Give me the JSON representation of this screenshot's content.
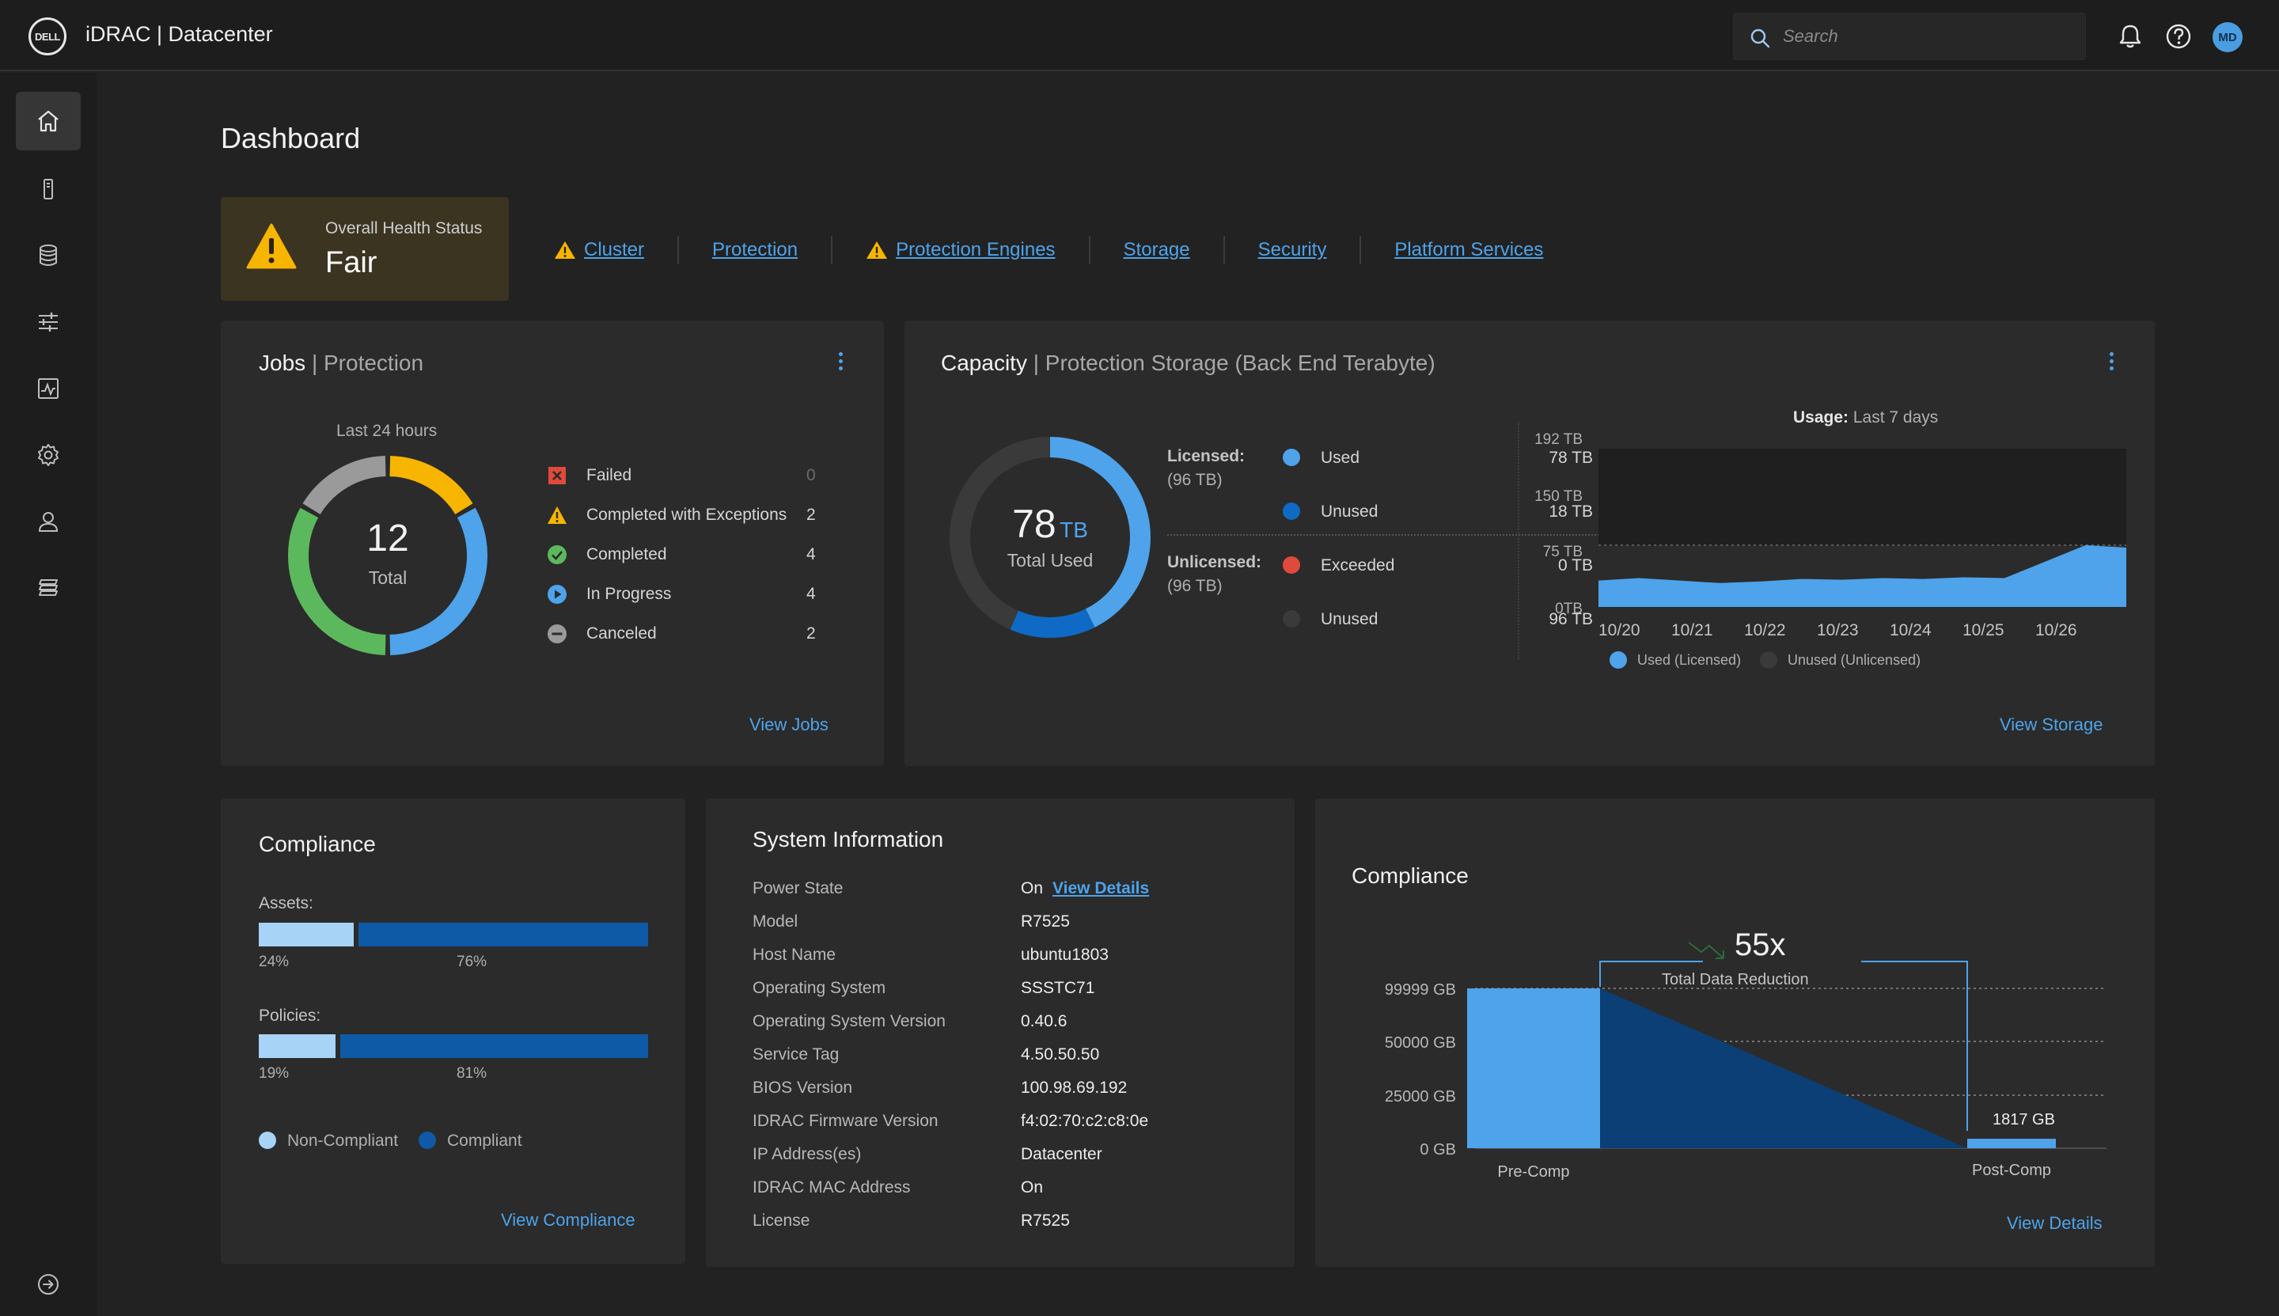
{
  "header": {
    "logo_text": "DELL",
    "title": "iDRAC | Datacenter",
    "search_placeholder": "Search",
    "avatar_initials": "MD"
  },
  "sidebar": {
    "items": [
      {
        "name": "home",
        "icon": "home-icon",
        "active": true
      },
      {
        "name": "server",
        "icon": "server-icon"
      },
      {
        "name": "storage",
        "icon": "database-icon"
      },
      {
        "name": "configuration",
        "icon": "sliders-icon"
      },
      {
        "name": "monitoring",
        "icon": "chart-icon"
      },
      {
        "name": "settings",
        "icon": "gear-icon"
      },
      {
        "name": "users",
        "icon": "user-icon"
      },
      {
        "name": "layers",
        "icon": "layers-icon"
      }
    ],
    "bottom_icon": "arrow-right-circle-icon"
  },
  "dashboard": {
    "title": "Dashboard",
    "health": {
      "label": "Overall Health Status",
      "value": "Fair"
    },
    "status_links": [
      {
        "label": "Cluster",
        "warning": true
      },
      {
        "label": "Protection",
        "warning": false
      },
      {
        "label": "Protection Engines",
        "warning": true
      },
      {
        "label": "Storage",
        "warning": false
      },
      {
        "label": "Security",
        "warning": false
      },
      {
        "label": "Platform Services",
        "warning": false
      }
    ]
  },
  "jobs": {
    "title": "Jobs",
    "subtitle": "Protection",
    "period": "Last 24 hours",
    "total": "12",
    "total_label": "Total",
    "legend": [
      {
        "label": "Failed",
        "count": "0",
        "color": "#e04a3c",
        "icon": "failed-icon"
      },
      {
        "label": "Completed with Exceptions",
        "count": "2",
        "color": "#f7b500",
        "icon": "warning-icon"
      },
      {
        "label": "Completed",
        "count": "4",
        "color": "#5cb85c",
        "icon": "check-icon"
      },
      {
        "label": "In Progress",
        "count": "4",
        "color": "#4ea3ea",
        "icon": "play-icon"
      },
      {
        "label": "Canceled",
        "count": "2",
        "color": "#9a9a9a",
        "icon": "minus-icon"
      }
    ],
    "view_link": "View Jobs"
  },
  "capacity": {
    "title": "Capacity",
    "subtitle": "Protection Storage (Back End Terabyte)",
    "total_value": "78",
    "total_unit": "TB",
    "total_label": "Total Used",
    "licensed_label": "Licensed:",
    "licensed_size": "(96 TB)",
    "unlicensed_label": "Unlicensed:",
    "unlicensed_size": "(96 TB)",
    "rows": [
      {
        "label": "Used",
        "value": "78 TB",
        "color": "#4ea3ea"
      },
      {
        "label": "Unused",
        "value": "18 TB",
        "color": "#0e6ac4"
      },
      {
        "label": "Exceeded",
        "value": "0 TB",
        "color": "#e04a3c"
      },
      {
        "label": "Unused",
        "value": "96 TB",
        "color": "#3a3a3a"
      }
    ],
    "usage_label": "Usage:",
    "usage_period": "Last 7 days",
    "view_link": "View Storage"
  },
  "compliance_assets": {
    "title": "Compliance",
    "assets_label": "Assets:",
    "assets_noncompliant": 24,
    "assets_compliant": 76,
    "assets_noncompliant_label": "24%",
    "assets_compliant_label": "76%",
    "policies_label": "Policies:",
    "policies_noncompliant": 19,
    "policies_compliant": 81,
    "policies_noncompliant_label": "19%",
    "policies_compliant_label": "81%",
    "legend_noncompliant": "Non-Compliant",
    "legend_compliant": "Compliant",
    "color_noncompliant": "#a7d3f7",
    "color_compliant": "#0e5aa7",
    "view_link": "View Compliance"
  },
  "system_info": {
    "title": "System Information",
    "view_details": "View Details",
    "rows": [
      {
        "label": "Power State",
        "value": "On"
      },
      {
        "label": "Model",
        "value": "R7525"
      },
      {
        "label": "Host Name",
        "value": "ubuntu1803"
      },
      {
        "label": "Operating System",
        "value": "SSSTC71"
      },
      {
        "label": "Operating System Version",
        "value": "0.40.6"
      },
      {
        "label": "Service Tag",
        "value": "4.50.50.50"
      },
      {
        "label": "BIOS Version",
        "value": "100.98.69.192"
      },
      {
        "label": "IDRAC Firmware Version",
        "value": "f4:02:70:c2:c8:0e"
      },
      {
        "label": "IP Address(es)",
        "value": "Datacenter"
      },
      {
        "label": "IDRAC MAC Address",
        "value": "On"
      },
      {
        "label": "License",
        "value": "R7525"
      }
    ]
  },
  "data_reduction": {
    "title": "Compliance",
    "ratio": "55x",
    "ratio_label": "Total Data Reduction",
    "post_value_label": "1817 GB",
    "view_link": "View Details"
  },
  "chart_data": [
    {
      "type": "pie",
      "title": "",
      "series": [
        {
          "name": "Completed with Exceptions",
          "value": 2
        },
        {
          "name": "In Progress",
          "value": 4
        },
        {
          "name": "Completed",
          "value": 4
        },
        {
          "name": "Canceled",
          "value": 2
        }
      ]
    },
    {
      "type": "pie",
      "title": "",
      "series": [
        {
          "name": "Used",
          "value": 78
        },
        {
          "name": "Unused",
          "value": 18
        }
      ]
    },
    {
      "type": "area",
      "title": "Usage: Last 7 days",
      "categories": [
        "10/20",
        "10/21",
        "10/22",
        "10/23",
        "10/24",
        "10/25",
        "10/26"
      ],
      "y_ticks": [
        "0TB",
        "75 TB",
        "150 TB",
        "192 TB"
      ],
      "x": [
        0,
        0.5,
        1,
        1.5,
        2,
        2.5,
        3,
        3.5,
        4,
        4.5,
        5,
        5.5,
        6,
        6.5
      ],
      "series": [
        {
          "name": "Used (Licensed)",
          "values": [
            32,
            35,
            32,
            29,
            31,
            34,
            33,
            35,
            34,
            36,
            35,
            55,
            75,
            72
          ]
        }
      ],
      "legend": [
        "Used (Licensed)",
        "Unused (Unlicensed)"
      ],
      "legend_colors": [
        "#4ea3ea",
        "#3a3a3a"
      ]
    },
    {
      "type": "bar",
      "title": "",
      "categories": [
        "Pre-Comp",
        "Post-Comp"
      ],
      "y_ticks": [
        "0 GB",
        "25000 GB",
        "50000 GB",
        "99999 GB"
      ],
      "values": [
        99999,
        1817
      ]
    }
  ]
}
